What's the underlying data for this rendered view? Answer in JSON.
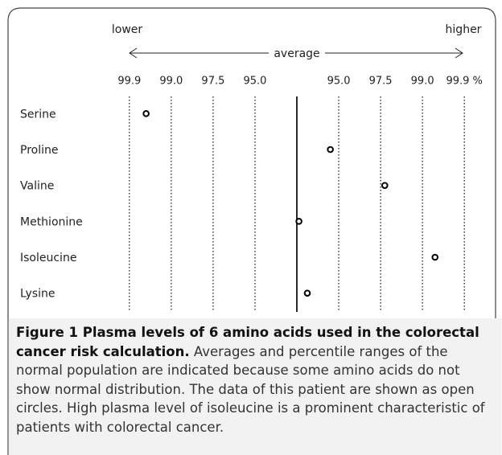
{
  "chart_data": {
    "type": "dot",
    "left_label": "lower",
    "right_label": "higher",
    "reference_line": {
      "value": 0,
      "label": "average"
    },
    "categories": [
      "Serine",
      "Proline",
      "Valine",
      "Methionine",
      "Isoleucine",
      "Lysine"
    ],
    "values": [
      -3.6,
      0.8,
      2.1,
      0.05,
      3.3,
      0.25
    ],
    "xlim": [
      -4.4,
      4.4
    ],
    "xticks": [
      {
        "value": -4,
        "label": "99.9"
      },
      {
        "value": -3,
        "label": "99.0"
      },
      {
        "value": -2,
        "label": "97.5"
      },
      {
        "value": -1,
        "label": "95.0"
      },
      {
        "value": 1,
        "label": "95.0"
      },
      {
        "value": 2,
        "label": "97.5"
      },
      {
        "value": 3,
        "label": "99.0"
      },
      {
        "value": 4,
        "label": "99.9 %"
      }
    ],
    "grid": true,
    "color": "#000000"
  },
  "caption": {
    "title": "Figure 1 Plasma levels of 6 amino acids used in the colorectal cancer risk calculation.",
    "text": "Averages and percentile ranges of the normal population are indicated because some amino acids do not show normal distribution. The data of this patient are shown as open circles. High plasma level of isoleucine is a prominent characteristic of patients with colorectal cancer."
  }
}
